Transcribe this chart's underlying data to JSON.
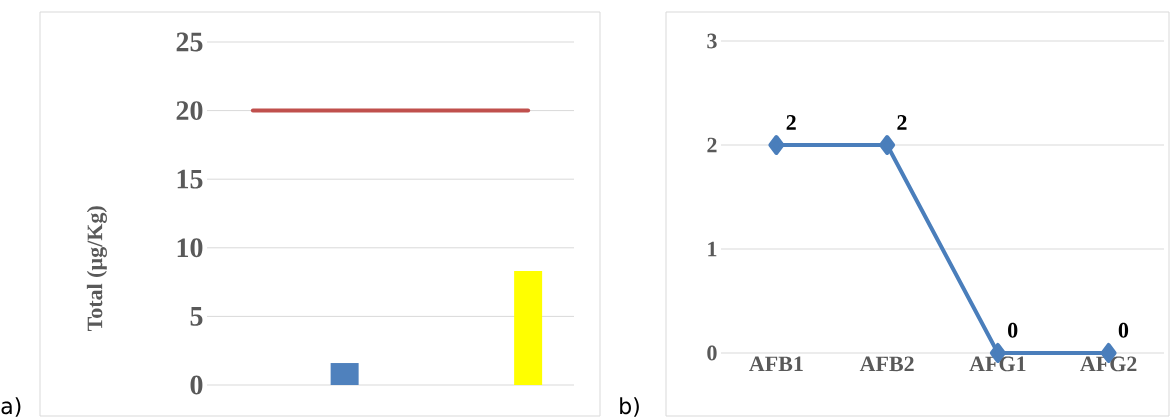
{
  "chart_data": [
    {
      "type": "bar",
      "categories": [
        null,
        null,
        null,
        null
      ],
      "ylabel": "Total (µg/Kg)",
      "ylim": [
        0,
        25
      ],
      "yticks": [
        0,
        5,
        10,
        15,
        20,
        25
      ],
      "grid": "y",
      "annotations": [
        "a)"
      ],
      "series": [
        {
          "type": "bar",
          "color": "#4f81bd",
          "values": [
            null,
            1.6,
            null,
            null
          ]
        },
        {
          "type": "bar",
          "color": "#ffff00",
          "values": [
            null,
            null,
            null,
            8.3
          ]
        },
        {
          "type": "line",
          "color": "#c0504d",
          "values": [
            20,
            20,
            20,
            20
          ]
        }
      ]
    },
    {
      "type": "line",
      "categories": [
        "AFB1",
        "AFB2",
        "AFG1",
        "AFG2"
      ],
      "ylim": [
        0,
        3
      ],
      "yticks": [
        0,
        1,
        2,
        3
      ],
      "grid": "y",
      "marker": "diamond",
      "line_style": "solid",
      "data_labels": true,
      "annotations": [
        "b)"
      ],
      "series": [
        {
          "color": "#4a7ebb",
          "values": [
            2,
            2,
            0,
            0
          ]
        }
      ]
    }
  ]
}
